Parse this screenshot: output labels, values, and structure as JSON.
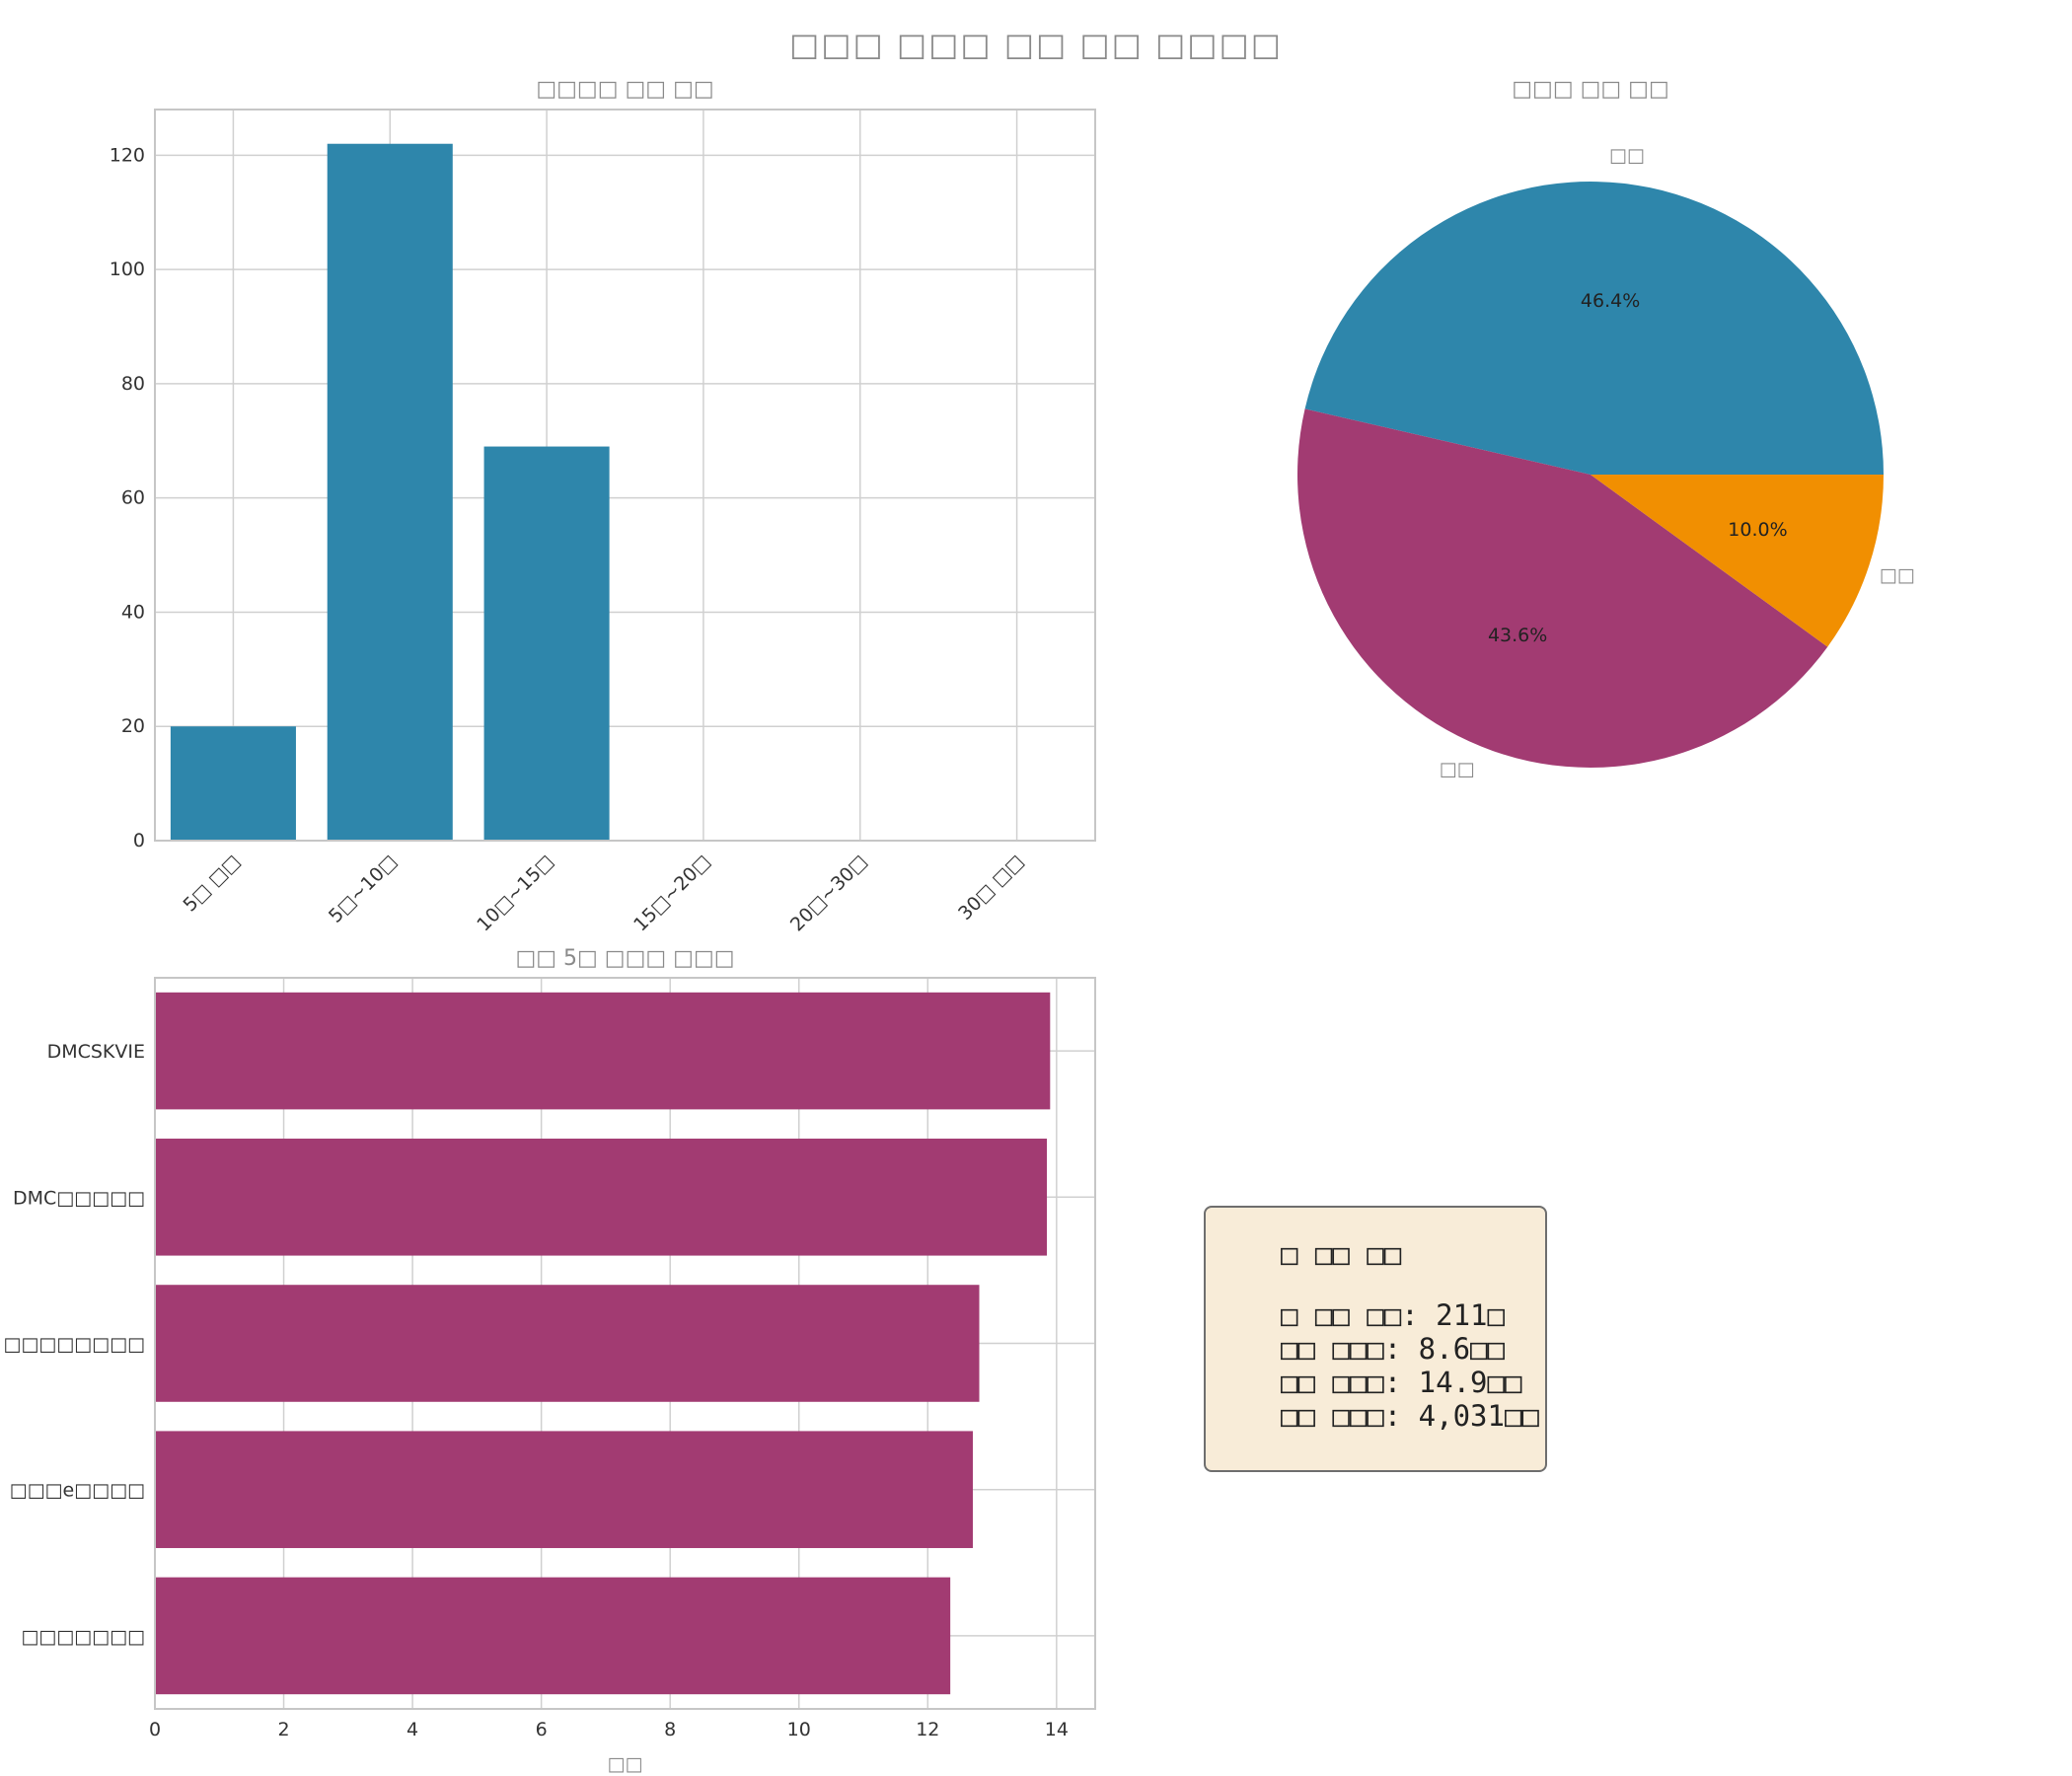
{
  "title": "□□□ □□□ □□ □□ □□□□",
  "colors": {
    "blue": "#2e86ab",
    "magenta": "#a23b72",
    "orange": "#f18f01",
    "grid": "#d0d0d0",
    "frame": "#c6c6c6"
  },
  "chart_data": [
    {
      "type": "bar",
      "title": "□□□□ □□ □□",
      "categories": [
        "5□ □□",
        "5□~10□",
        "10□~15□",
        "15□~20□",
        "20□~30□",
        "30□ □□"
      ],
      "values": [
        20,
        122,
        69,
        0,
        0,
        0
      ],
      "ylim": [
        0,
        128
      ],
      "yticks": [
        0,
        20,
        40,
        60,
        80,
        100,
        120
      ],
      "grid": true
    },
    {
      "type": "pie",
      "title": "□□□ □□ □□",
      "slices": [
        {
          "label": "□□",
          "value": 46.4,
          "pct_label": "46.4%"
        },
        {
          "label": "□□",
          "value": 43.6,
          "pct_label": "43.6%"
        },
        {
          "label": "□□",
          "value": 10.0,
          "pct_label": "10.0%"
        }
      ]
    },
    {
      "type": "bar",
      "orientation": "horizontal",
      "title": "□□ 5□ □□□ □□□",
      "categories": [
        "DMCSKVIE",
        "DMC□□□□□",
        "□□□□□□□□",
        "□□□e□□□□",
        "□□□□□□□"
      ],
      "values": [
        13.9,
        13.85,
        12.8,
        12.7,
        12.35
      ],
      "xlabel": "□□",
      "xlim": [
        0,
        14.6
      ],
      "xticks": [
        0,
        2,
        4,
        6,
        8,
        10,
        12,
        14
      ],
      "grid": true
    }
  ],
  "stats": {
    "heading": "□ □□ □□",
    "lines": [
      "□ □□ □□: 211□",
      "□□ □□□: 8.6□□",
      "□□ □□□: 14.9□□",
      "□□ □□□: 4,031□□"
    ]
  }
}
